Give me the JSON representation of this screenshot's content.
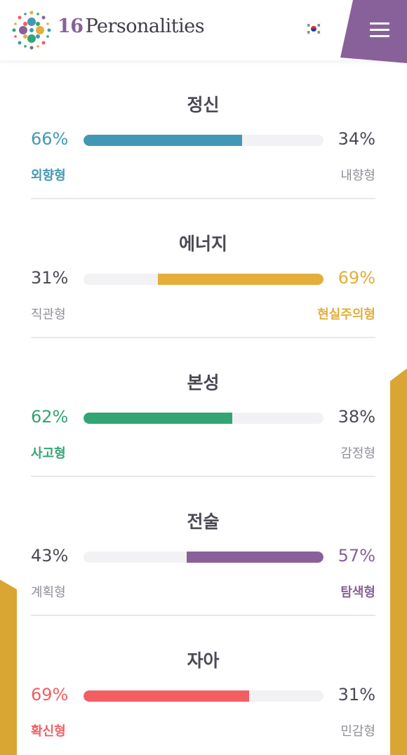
{
  "header": {
    "brand_number": "16",
    "brand_name": "Personalities",
    "logo_icon": "sixteen-dots-logo-icon",
    "flag_icon": "korea-flag-icon",
    "menu_icon": "hamburger-menu-icon",
    "menu_tab_color": "#88619a"
  },
  "decor": {
    "side_accent_color": "#d9a633"
  },
  "traits": [
    {
      "title": "정신",
      "left_label": "외향형",
      "left_pct": "66%",
      "right_label": "내향형",
      "right_pct": "34%",
      "dominant": "left",
      "fill_fraction": 0.66,
      "color": "#4298b4"
    },
    {
      "title": "에너지",
      "left_label": "직관형",
      "left_pct": "31%",
      "right_label": "현실주의형",
      "right_pct": "69%",
      "dominant": "right",
      "fill_fraction": 0.69,
      "color": "#e4ae3a"
    },
    {
      "title": "본성",
      "left_label": "사고형",
      "left_pct": "62%",
      "right_label": "감정형",
      "right_pct": "38%",
      "dominant": "left",
      "fill_fraction": 0.62,
      "color": "#33a474"
    },
    {
      "title": "전술",
      "left_label": "계획형",
      "left_pct": "43%",
      "right_label": "탐색형",
      "right_pct": "57%",
      "dominant": "right",
      "fill_fraction": 0.57,
      "color": "#88619a"
    },
    {
      "title": "자아",
      "left_label": "확신형",
      "left_pct": "69%",
      "right_label": "민감형",
      "right_pct": "31%",
      "dominant": "left",
      "fill_fraction": 0.69,
      "color": "#f25e62"
    }
  ]
}
